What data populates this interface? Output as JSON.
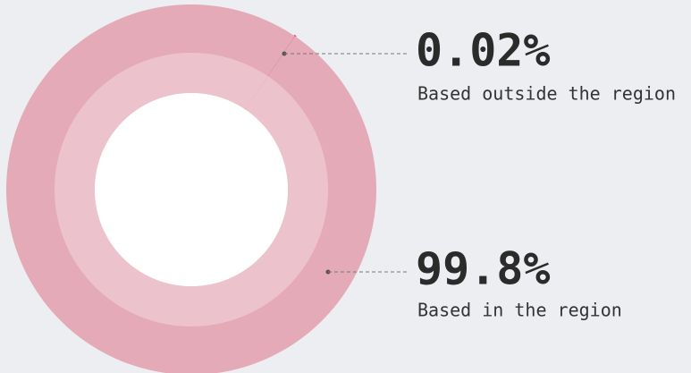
{
  "chart_data": {
    "type": "pie",
    "donut": true,
    "categories": [
      "Based outside the region",
      "Based in the region"
    ],
    "values": [
      0.02,
      99.8
    ],
    "value_labels": [
      "0.02%",
      "99.8%"
    ],
    "colors": [
      "#d9577f",
      "#e4aab8"
    ]
  }
}
